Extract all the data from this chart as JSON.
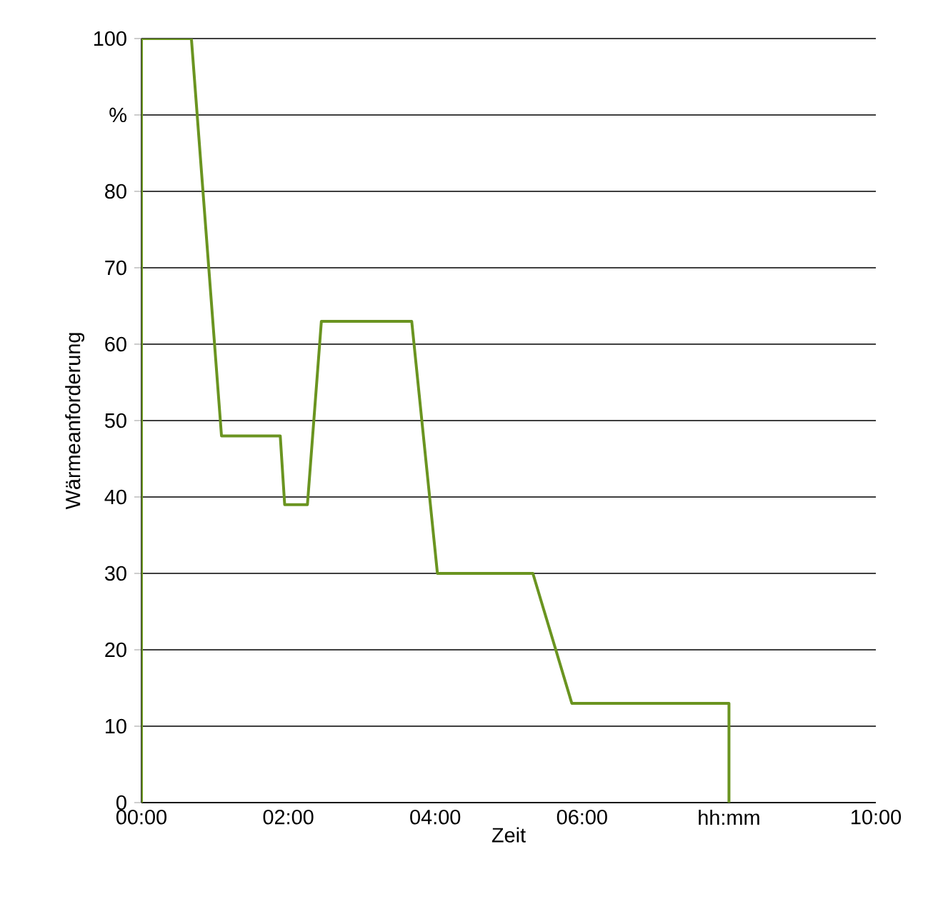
{
  "chart_data": {
    "type": "line",
    "xlabel": "Zeit",
    "ylabel": "Wärmeanforderung",
    "x": [
      0,
      0,
      0.68,
      1.09,
      1.89,
      1.95,
      2.26,
      2.45,
      3.68,
      4.03,
      5.33,
      5.86,
      8.0,
      8.0
    ],
    "values": [
      0,
      100,
      100,
      48,
      48,
      39,
      39,
      63,
      63,
      30,
      30,
      13,
      13,
      0
    ],
    "color": "#6a9420",
    "xlim": [
      0,
      10
    ],
    "ylim": [
      0,
      100
    ],
    "xticks": [
      {
        "value": 0,
        "label": "00:00"
      },
      {
        "value": 2,
        "label": "02:00"
      },
      {
        "value": 4,
        "label": "04:00"
      },
      {
        "value": 6,
        "label": "06:00"
      },
      {
        "value": 8,
        "label": "hh:mm"
      },
      {
        "value": 10,
        "label": "10:00"
      }
    ],
    "yticks": [
      0,
      10,
      20,
      30,
      40,
      50,
      60,
      70,
      80,
      {
        "value": 90,
        "label": "%"
      },
      100
    ],
    "grid": "y",
    "marker": "none",
    "line_style": "solid"
  }
}
